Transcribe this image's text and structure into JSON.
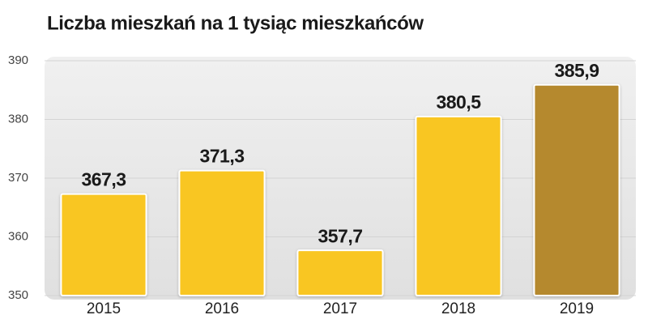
{
  "chart_data": {
    "type": "bar",
    "title": "Liczba mieszkań na 1 tysiąc mieszkańców",
    "categories": [
      "2015",
      "2016",
      "2017",
      "2018",
      "2019"
    ],
    "values": [
      367.3,
      371.3,
      357.7,
      380.5,
      385.9
    ],
    "value_labels": [
      "367,3",
      "371,3",
      "357,7",
      "380,5",
      "385,9"
    ],
    "colors": [
      "#f9c623",
      "#f9c623",
      "#f9c623",
      "#f9c623",
      "#b5892e"
    ],
    "ylim": [
      350,
      390
    ],
    "yticks": [
      350,
      360,
      370,
      380,
      390
    ],
    "grid": true
  }
}
